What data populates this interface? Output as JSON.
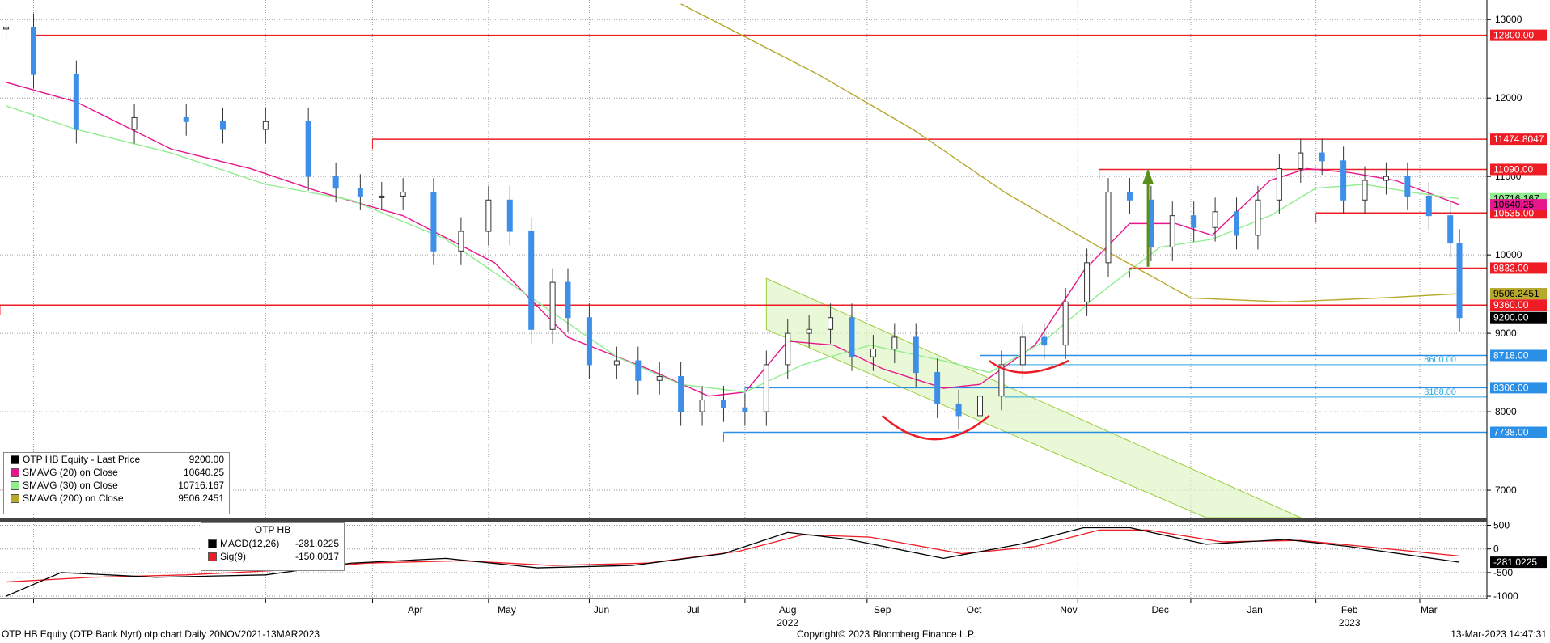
{
  "chart_data": {
    "type": "candlestick",
    "panels": [
      {
        "id": "price",
        "yticks": [
          13000,
          12000,
          11000,
          10000,
          9000,
          8000,
          7000
        ],
        "ylim": [
          6650,
          13250
        ],
        "grid": true,
        "series": [
          {
            "name": "OTP HB Equity - Last Price",
            "last": "9200.00",
            "color": "#3d8fe8",
            "x": [
              "2021-11-22",
              "2021-12-01",
              "2021-12-15",
              "2022-01-03",
              "2022-01-20",
              "2022-02-01",
              "2022-02-15",
              "2022-03-01",
              "2022-03-10",
              "2022-03-18",
              "2022-03-25",
              "2022-04-01",
              "2022-04-11",
              "2022-04-20",
              "2022-04-29",
              "2022-05-06",
              "2022-05-13",
              "2022-05-20",
              "2022-05-25",
              "2022-06-01",
              "2022-06-10",
              "2022-06-17",
              "2022-06-24",
              "2022-07-01",
              "2022-07-08",
              "2022-07-15",
              "2022-07-22",
              "2022-07-29",
              "2022-08-05",
              "2022-08-12",
              "2022-08-19",
              "2022-08-26",
              "2022-09-02",
              "2022-09-09",
              "2022-09-16",
              "2022-09-23",
              "2022-09-30",
              "2022-10-07",
              "2022-10-14",
              "2022-10-21",
              "2022-10-28",
              "2022-11-04",
              "2022-11-11",
              "2022-11-18",
              "2022-11-25",
              "2022-12-02",
              "2022-12-09",
              "2022-12-16",
              "2022-12-23",
              "2022-12-30",
              "2023-01-06",
              "2023-01-13",
              "2023-01-20",
              "2023-01-27",
              "2023-02-03",
              "2023-02-10",
              "2023-02-17",
              "2023-02-24",
              "2023-03-03",
              "2023-03-10",
              "2023-03-13"
            ],
            "values": [
              12900,
              12300,
              11600,
              11750,
              11700,
              11600,
              11700,
              11000,
              10850,
              10750,
              10750,
              10800,
              10050,
              10300,
              10700,
              10300,
              9050,
              9650,
              9200,
              8600,
              8650,
              8400,
              8450,
              8000,
              8150,
              8050,
              8000,
              8600,
              9000,
              9050,
              9200,
              8700,
              8800,
              8950,
              8500,
              8100,
              7950,
              8200,
              8600,
              8950,
              8850,
              9400,
              9900,
              10800,
              10700,
              10100,
              10500,
              10350,
              10550,
              10250,
              10700,
              11100,
              11300,
              11200,
              10700,
              10950,
              11000,
              10750,
              10500,
              10150,
              9200
            ]
          },
          {
            "name": "SMAVG (20)  on Close",
            "last": "10640.25",
            "color": "#e8168c",
            "x": [
              "2021-11-22",
              "2021-12-15",
              "2022-01-15",
              "2022-02-10",
              "2022-03-05",
              "2022-04-01",
              "2022-05-01",
              "2022-05-25",
              "2022-06-20",
              "2022-07-10",
              "2022-07-22",
              "2022-08-05",
              "2022-08-20",
              "2022-09-05",
              "2022-09-25",
              "2022-10-07",
              "2022-10-25",
              "2022-11-10",
              "2022-11-25",
              "2022-12-10",
              "2022-12-22",
              "2023-01-10",
              "2023-01-22",
              "2023-02-05",
              "2023-02-20",
              "2023-03-13"
            ],
            "values": [
              12200,
              11950,
              11350,
              11100,
              10800,
              10500,
              9900,
              8950,
              8550,
              8200,
              8250,
              8900,
              8850,
              8550,
              8300,
              8350,
              8850,
              9800,
              10400,
              10400,
              10250,
              10950,
              11100,
              11050,
              10950,
              10640
            ]
          },
          {
            "name": "SMAVG (30)  on Close",
            "last": "10716.167",
            "color": "#90ee90",
            "x": [
              "2021-11-22",
              "2021-12-15",
              "2022-01-15",
              "2022-02-15",
              "2022-03-15",
              "2022-04-15",
              "2022-05-15",
              "2022-06-10",
              "2022-07-01",
              "2022-07-22",
              "2022-08-10",
              "2022-09-01",
              "2022-09-25",
              "2022-10-10",
              "2022-10-28",
              "2022-11-15",
              "2022-12-05",
              "2022-12-22",
              "2023-01-10",
              "2023-01-25",
              "2023-02-10",
              "2023-02-25",
              "2023-03-13"
            ],
            "values": [
              11900,
              11600,
              11300,
              10900,
              10700,
              10200,
              9400,
              8700,
              8350,
              8250,
              8600,
              8850,
              8650,
              8500,
              8900,
              9500,
              10100,
              10200,
              10500,
              10850,
              10900,
              10800,
              10716
            ]
          },
          {
            "name": "SMAVG (200)  on Close",
            "last": "9506.2451",
            "color": "#b5a82a",
            "x": [
              "2022-07-01",
              "2022-08-15",
              "2022-09-15",
              "2022-10-15",
              "2022-11-15",
              "2022-12-15",
              "2023-01-15",
              "2023-02-15",
              "2023-03-13"
            ],
            "values": [
              13200,
              12300,
              11600,
              10800,
              10100,
              9450,
              9400,
              9450,
              9506
            ]
          }
        ],
        "horizontal_lines": [
          {
            "value": 12800,
            "label": "12800.00",
            "color": "#ee1c25",
            "from": "2021-12-01"
          },
          {
            "value": 11474.8047,
            "label": "11474.8047",
            "color": "#ee1c25",
            "from": "2022-03-22"
          },
          {
            "value": 11090,
            "label": "11090.00",
            "color": "#ee1c25",
            "from": "2022-11-15"
          },
          {
            "value": 10535,
            "label": "10535.00",
            "color": "#ee1c25",
            "from": "2023-01-25"
          },
          {
            "value": 9832,
            "label": "9832.00",
            "color": "#ee1c25",
            "from": "2022-11-25"
          },
          {
            "value": 9360,
            "label": "9360.00",
            "color": "#ee1c25",
            "from": "2021-11-20"
          },
          {
            "value": 8718,
            "label": "8718.00",
            "color": "#2b8fe6",
            "from": "2022-10-07"
          },
          {
            "value": 8306,
            "label": "8306.00",
            "color": "#2b8fe6",
            "from": "2022-07-22"
          },
          {
            "value": 7738,
            "label": "7738.00",
            "color": "#2b8fe6",
            "from": "2022-07-15"
          }
        ],
        "annotations": [
          {
            "text": "8600.00",
            "value": 8600,
            "color": "#29a8e0"
          },
          {
            "text": "8188.00",
            "value": 8188,
            "color": "#29a8e0"
          }
        ],
        "badges": [
          {
            "label": "10716.167",
            "value": 10716,
            "color": "#90ee90"
          },
          {
            "label": "10640.25",
            "value": 10640,
            "color": "#e8168c"
          },
          {
            "label": "9506.2451",
            "value": 9506,
            "color": "#b5a82a"
          },
          {
            "label": "9200.00",
            "value": 9200,
            "color": "#000000"
          }
        ]
      },
      {
        "id": "macd",
        "yticks": [
          500,
          0,
          -500,
          -1000
        ],
        "ytick_labels": [
          "500",
          "0",
          "-500",
          "-1000"
        ],
        "ylim": [
          -1050,
          560
        ],
        "series": [
          {
            "name": "MACD(12,26)",
            "last": "-281.0225",
            "color": "#000000",
            "x": [
              "2021-11-22",
              "2021-12-10",
              "2022-01-10",
              "2022-02-15",
              "2022-03-15",
              "2022-04-15",
              "2022-05-15",
              "2022-06-15",
              "2022-07-15",
              "2022-08-05",
              "2022-08-25",
              "2022-09-25",
              "2022-10-20",
              "2022-11-10",
              "2022-11-25",
              "2022-12-20",
              "2023-01-15",
              "2023-02-05",
              "2023-03-13"
            ],
            "values": [
              -1000,
              -500,
              -600,
              -550,
              -300,
              -200,
              -400,
              -350,
              -100,
              350,
              200,
              -200,
              100,
              450,
              450,
              100,
              200,
              50,
              -281
            ]
          },
          {
            "name": "Sig(9)",
            "last": "-150.0017",
            "color": "#ee1c25",
            "x": [
              "2021-11-22",
              "2021-12-20",
              "2022-01-20",
              "2022-02-20",
              "2022-03-20",
              "2022-04-20",
              "2022-05-20",
              "2022-06-20",
              "2022-07-20",
              "2022-08-10",
              "2022-09-01",
              "2022-10-01",
              "2022-10-25",
              "2022-11-15",
              "2022-12-01",
              "2022-12-25",
              "2023-01-20",
              "2023-02-10",
              "2023-03-13"
            ],
            "values": [
              -700,
              -600,
              -550,
              -450,
              -300,
              -250,
              -350,
              -300,
              -50,
              300,
              250,
              -100,
              50,
              400,
              400,
              150,
              180,
              50,
              -150
            ]
          }
        ]
      }
    ],
    "x_ticks": [
      "Apr",
      "May",
      "Jun",
      "Jul",
      "Aug",
      "Sep",
      "Oct",
      "Nov",
      "Dec",
      "Jan",
      "Feb",
      "Mar"
    ],
    "year_labels": [
      "2022",
      "2023"
    ]
  },
  "legend": {
    "rows": [
      {
        "label": "OTP HB Equity - Last Price",
        "value": "9200.00",
        "color": "#000000"
      },
      {
        "label": "SMAVG (20)  on Close",
        "value": "10640.25",
        "color": "#e8168c"
      },
      {
        "label": "SMAVG (30)  on Close",
        "value": "10716.167",
        "color": "#90ee90"
      },
      {
        "label": "SMAVG (200)  on Close",
        "value": "9506.2451",
        "color": "#b5a82a"
      }
    ]
  },
  "macd_legend": {
    "title": "OTP HB",
    "rows": [
      {
        "label": "MACD(12,26)",
        "value": "-281.0225",
        "color": "#000000"
      },
      {
        "label": "Sig(9)",
        "value": "-150.0017",
        "color": "#ee1c25"
      }
    ]
  },
  "footer": {
    "left": "OTP HB Equity (OTP Bank Nyrt) otp chart  Daily 20NOV2021-13MAR2023",
    "center": "Copyright© 2023 Bloomberg Finance L.P.",
    "right": "13-Mar-2023 14:47:31"
  }
}
